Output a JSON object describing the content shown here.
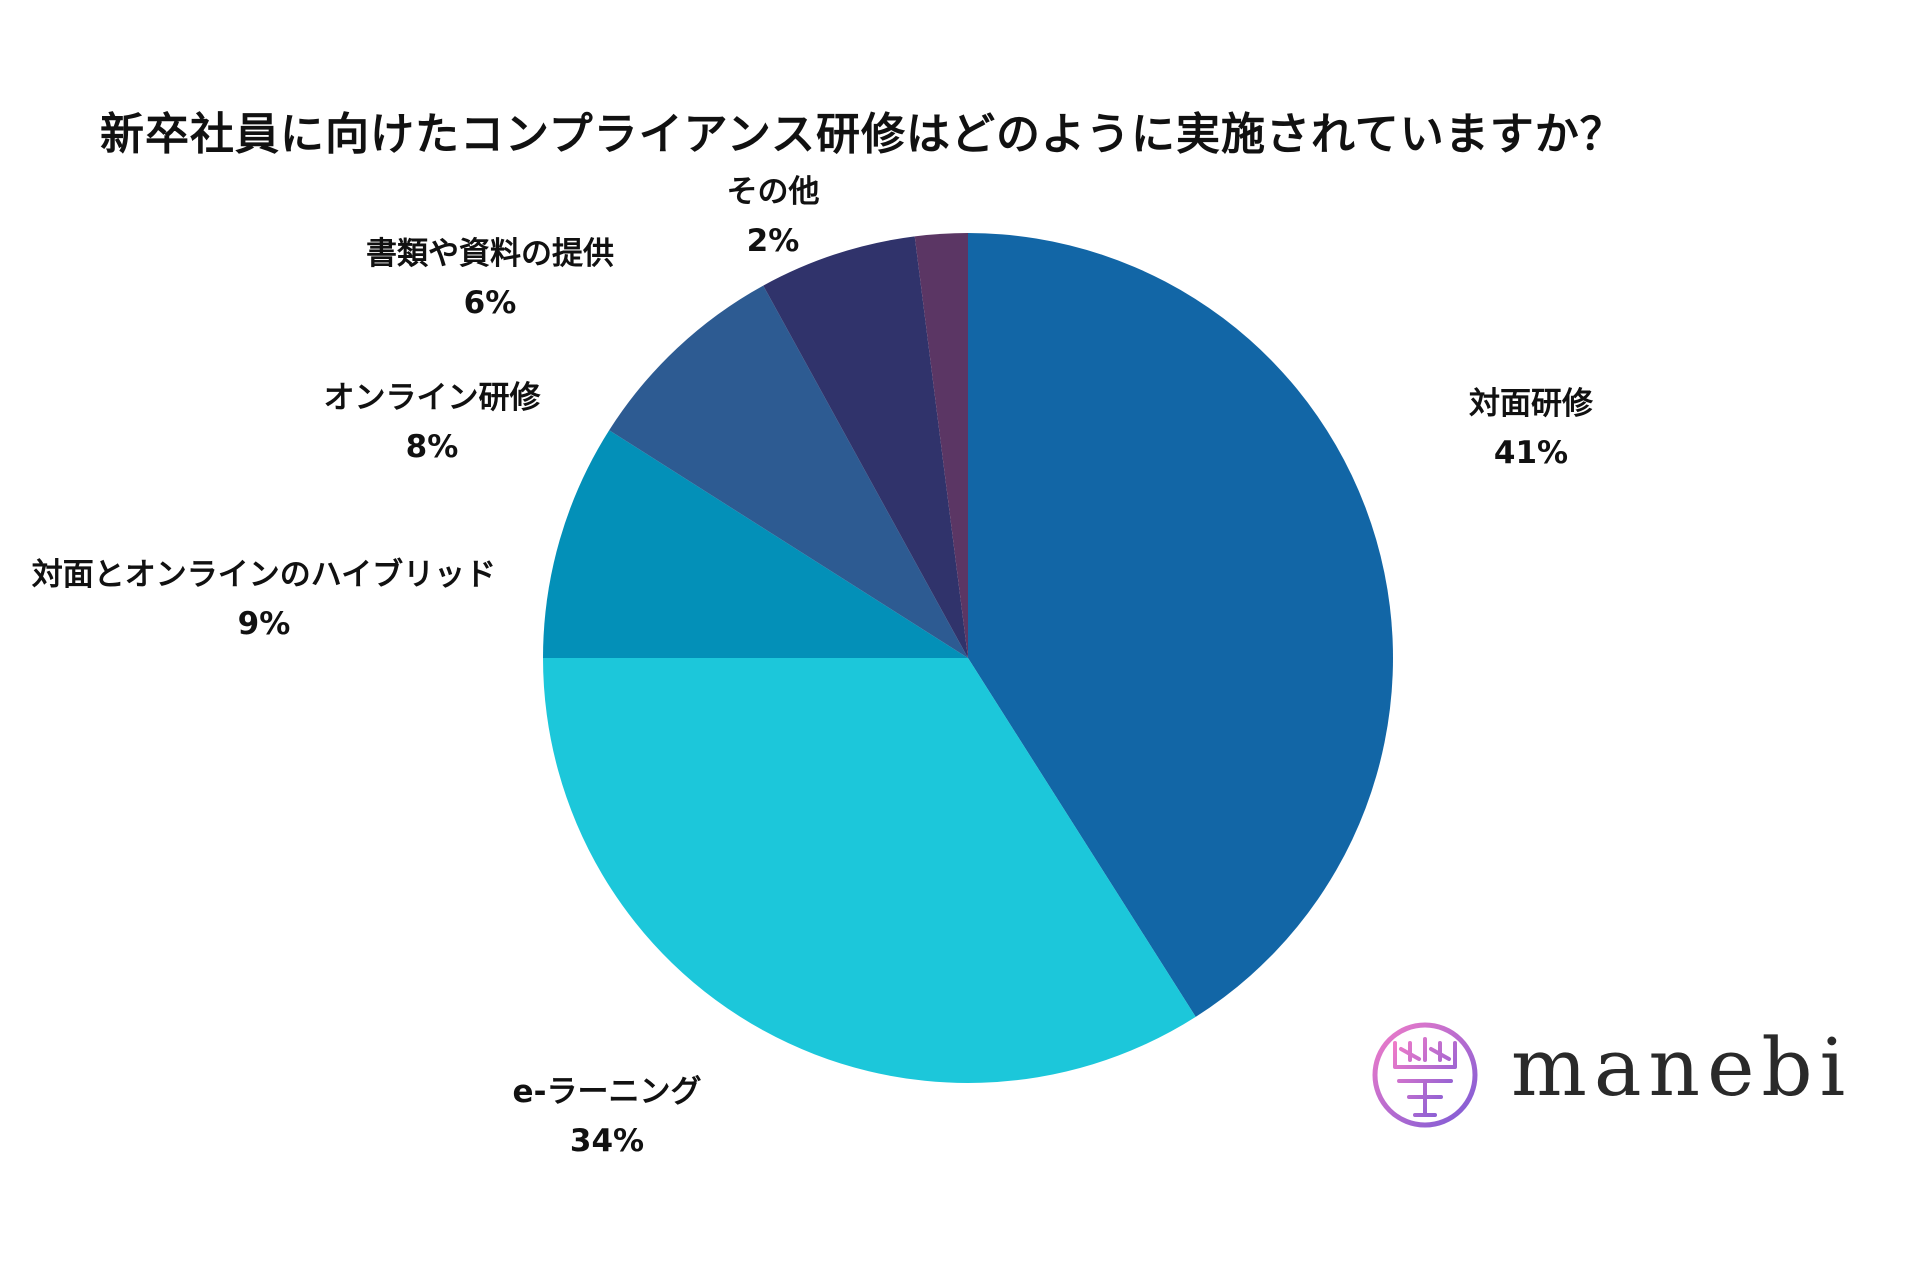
{
  "chart_data": {
    "type": "pie",
    "title": "新卒社員に向けたコンプライアンス研修はどのように実施されていますか？",
    "slices": [
      {
        "label": "対面研修",
        "percent_label": "41%",
        "value": 41,
        "color": "#1266a6"
      },
      {
        "label": "e-ラーニング",
        "percent_label": "34%",
        "value": 34,
        "color": "#1cc7da"
      },
      {
        "label": "対面とオンラインのハイブリッド",
        "percent_label": "9%",
        "value": 9,
        "color": "#0390b8"
      },
      {
        "label": "オンライン研修",
        "percent_label": "8%",
        "value": 8,
        "color": "#2d5b92"
      },
      {
        "label": "書類や資料の提供",
        "percent_label": "6%",
        "value": 6,
        "color": "#30336b"
      },
      {
        "label": "その他",
        "percent_label": "2%",
        "value": 2,
        "color": "#5b3664"
      }
    ],
    "legend": "none"
  },
  "logo": {
    "text": "manebi",
    "icon": "manebi-logo-icon"
  }
}
